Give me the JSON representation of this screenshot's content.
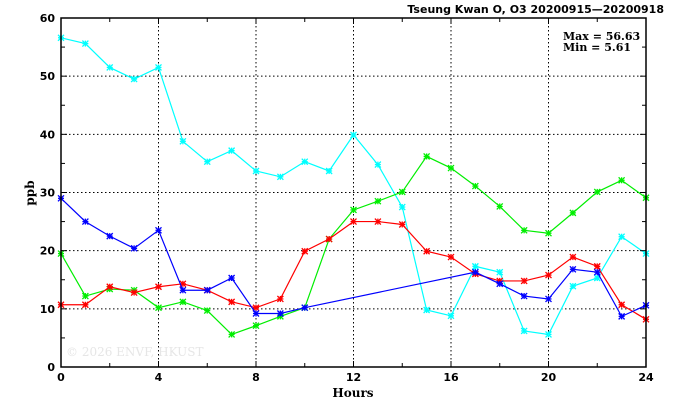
{
  "chart_data": {
    "type": "line",
    "title": "Tseung Kwan O, O3 20200915—20200918",
    "xlabel": "Hours",
    "ylabel": "ppb",
    "xlim": [
      0,
      24
    ],
    "ylim": [
      0,
      60
    ],
    "xticks": [
      0,
      4,
      8,
      12,
      16,
      20,
      24
    ],
    "yticks": [
      0,
      10,
      20,
      30,
      40,
      50,
      60
    ],
    "grid": true,
    "stats": {
      "max_label": "Max = 56.63",
      "min_label": "Min =  5.61"
    },
    "watermark": "© 2026  ENVF, HKUST",
    "x": [
      0,
      1,
      2,
      3,
      4,
      5,
      6,
      7,
      8,
      9,
      10,
      11,
      12,
      13,
      14,
      15,
      16,
      17,
      18,
      19,
      20,
      21,
      22,
      23,
      24
    ],
    "series": [
      {
        "name": "cyan",
        "color": "#00ffff",
        "values": [
          56.6,
          55.6,
          51.5,
          49.5,
          51.5,
          38.8,
          35.3,
          37.2,
          33.7,
          32.7,
          35.3,
          33.7,
          39.9,
          34.8,
          27.5,
          9.8,
          8.8,
          17.3,
          16.3,
          6.2,
          5.6,
          13.9,
          15.3,
          22.4,
          19.5
        ]
      },
      {
        "name": "green",
        "color": "#00ee00",
        "values": [
          19.5,
          12.2,
          13.4,
          13.2,
          10.2,
          11.2,
          9.7,
          5.6,
          7.1,
          8.7,
          10.2,
          22.0,
          27.0,
          28.5,
          30.1,
          36.2,
          34.2,
          31.1,
          27.6,
          23.5,
          23.0,
          26.5,
          30.1,
          32.1,
          29.1
        ]
      },
      {
        "name": "red",
        "color": "#ff0000",
        "values": [
          10.7,
          10.7,
          13.8,
          12.8,
          13.8,
          14.3,
          13.2,
          11.2,
          10.2,
          11.7,
          19.9,
          22.0,
          25.0,
          25.0,
          24.5,
          19.9,
          18.9,
          16.0,
          14.8,
          14.8,
          15.8,
          18.9,
          17.3,
          10.7,
          8.2
        ]
      },
      {
        "name": "blue",
        "color": "#0000ff",
        "values": [
          29.0,
          25.0,
          22.5,
          20.4,
          23.5,
          13.2,
          13.2,
          15.3,
          9.2,
          9.2,
          10.2,
          null,
          null,
          null,
          null,
          null,
          null,
          16.3,
          14.3,
          12.2,
          11.7,
          16.8,
          16.3,
          8.7,
          10.6
        ]
      }
    ]
  }
}
